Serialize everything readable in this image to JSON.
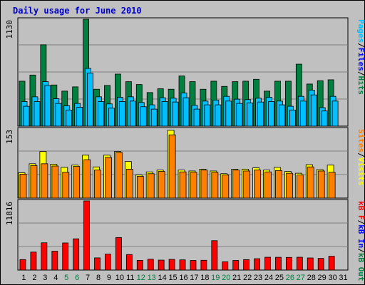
{
  "title": "Daily usage for June 2010",
  "colors": {
    "hits": "#008040",
    "files": "#00c0ff",
    "pages": "#00c0ff",
    "visits": "#ffff00",
    "sites": "#ff8000",
    "kbin": "#0000ff",
    "kbf": "#ff0000",
    "weekend": "#008040",
    "weekday": "#000000"
  },
  "legend": {
    "top": [
      {
        "text": "Pages",
        "color": "#00c0ff"
      },
      {
        "text": "/",
        "color": "#000000"
      },
      {
        "text": "Files",
        "color": "#0000ff"
      },
      {
        "text": "/",
        "color": "#000000"
      },
      {
        "text": "Hits",
        "color": "#008040"
      }
    ],
    "middle": [
      {
        "text": "Sites",
        "color": "#ff8000"
      },
      {
        "text": "/",
        "color": "#000000"
      },
      {
        "text": "Visits",
        "color": "#ffff00"
      }
    ],
    "bottom": [
      {
        "text": "kB F",
        "color": "#ff0000"
      },
      {
        "text": "/",
        "color": "#000000"
      },
      {
        "text": "kB In",
        "color": "#0000ff"
      },
      {
        "text": "/",
        "color": "#000000"
      },
      {
        "text": "kB Out",
        "color": "#008040"
      }
    ]
  },
  "chart_data": {
    "type": "bar",
    "title": "Daily usage for June 2010",
    "days": [
      1,
      2,
      3,
      4,
      5,
      6,
      7,
      8,
      9,
      10,
      11,
      12,
      13,
      14,
      15,
      16,
      17,
      18,
      19,
      20,
      21,
      22,
      23,
      24,
      25,
      26,
      27,
      28,
      29,
      30,
      31
    ],
    "weekend_days": [
      5,
      6,
      12,
      13,
      19,
      20,
      26,
      27
    ],
    "panels": [
      {
        "name": "top",
        "ymax_label": "1130",
        "ymax": 1130,
        "series": [
          {
            "name": "Hits",
            "values": [
              475,
              540,
              860,
              435,
              370,
              415,
              1130,
              390,
              430,
              550,
              470,
              440,
              355,
              395,
              390,
              530,
              470,
              390,
              475,
              420,
              470,
              475,
              495,
              370,
              475,
              475,
              655,
              445,
              480,
              490,
              null
            ]
          },
          {
            "name": "Files",
            "values": [
              260,
              310,
              470,
              290,
              215,
              240,
              610,
              310,
              235,
              305,
              310,
              250,
              225,
              300,
              295,
              350,
              220,
              265,
              275,
              315,
              285,
              280,
              295,
              305,
              265,
              210,
              315,
              380,
              195,
              315,
              null
            ]
          },
          {
            "name": "Pages",
            "values": [
              210,
              260,
              430,
              240,
              170,
              200,
              560,
              260,
              190,
              260,
              265,
              205,
              180,
              260,
              255,
              300,
              180,
              225,
              225,
              265,
              240,
              245,
              255,
              260,
              225,
              170,
              265,
              330,
              160,
              265,
              null
            ]
          }
        ]
      },
      {
        "name": "middle",
        "ymax_label": "153",
        "ymax": 153,
        "series": [
          {
            "name": "Visits",
            "values": [
              56,
              76,
              103,
              75,
              68,
              73,
              95,
              69,
              95,
              103,
              81,
              51,
              58,
              62,
              150,
              62,
              60,
              64,
              60,
              54,
              64,
              64,
              67,
              62,
              68,
              59,
              55,
              74,
              63,
              73,
              null
            ]
          },
          {
            "name": "Sites",
            "values": [
              53,
              72,
              76,
              71,
              57,
              70,
              85,
              62,
              90,
              101,
              64,
              48,
              54,
              59,
              140,
              58,
              57,
              62,
              57,
              51,
              62,
              60,
              62,
              58,
              61,
              55,
              51,
              69,
              60,
              57,
              null
            ]
          }
        ]
      },
      {
        "name": "bottom",
        "ymax_label": "11816",
        "ymax": 11816,
        "series": [
          {
            "name": "kB F",
            "values": [
              1790,
              3070,
              4660,
              3220,
              4630,
              5340,
              11816,
              2080,
              2720,
              5560,
              2650,
              1650,
              1850,
              1700,
              1820,
              1740,
              1640,
              1670,
              5020,
              1410,
              1640,
              1780,
              1940,
              2190,
              2180,
              2160,
              2190,
              2070,
              1990,
              2360,
              null
            ]
          }
        ]
      }
    ]
  }
}
